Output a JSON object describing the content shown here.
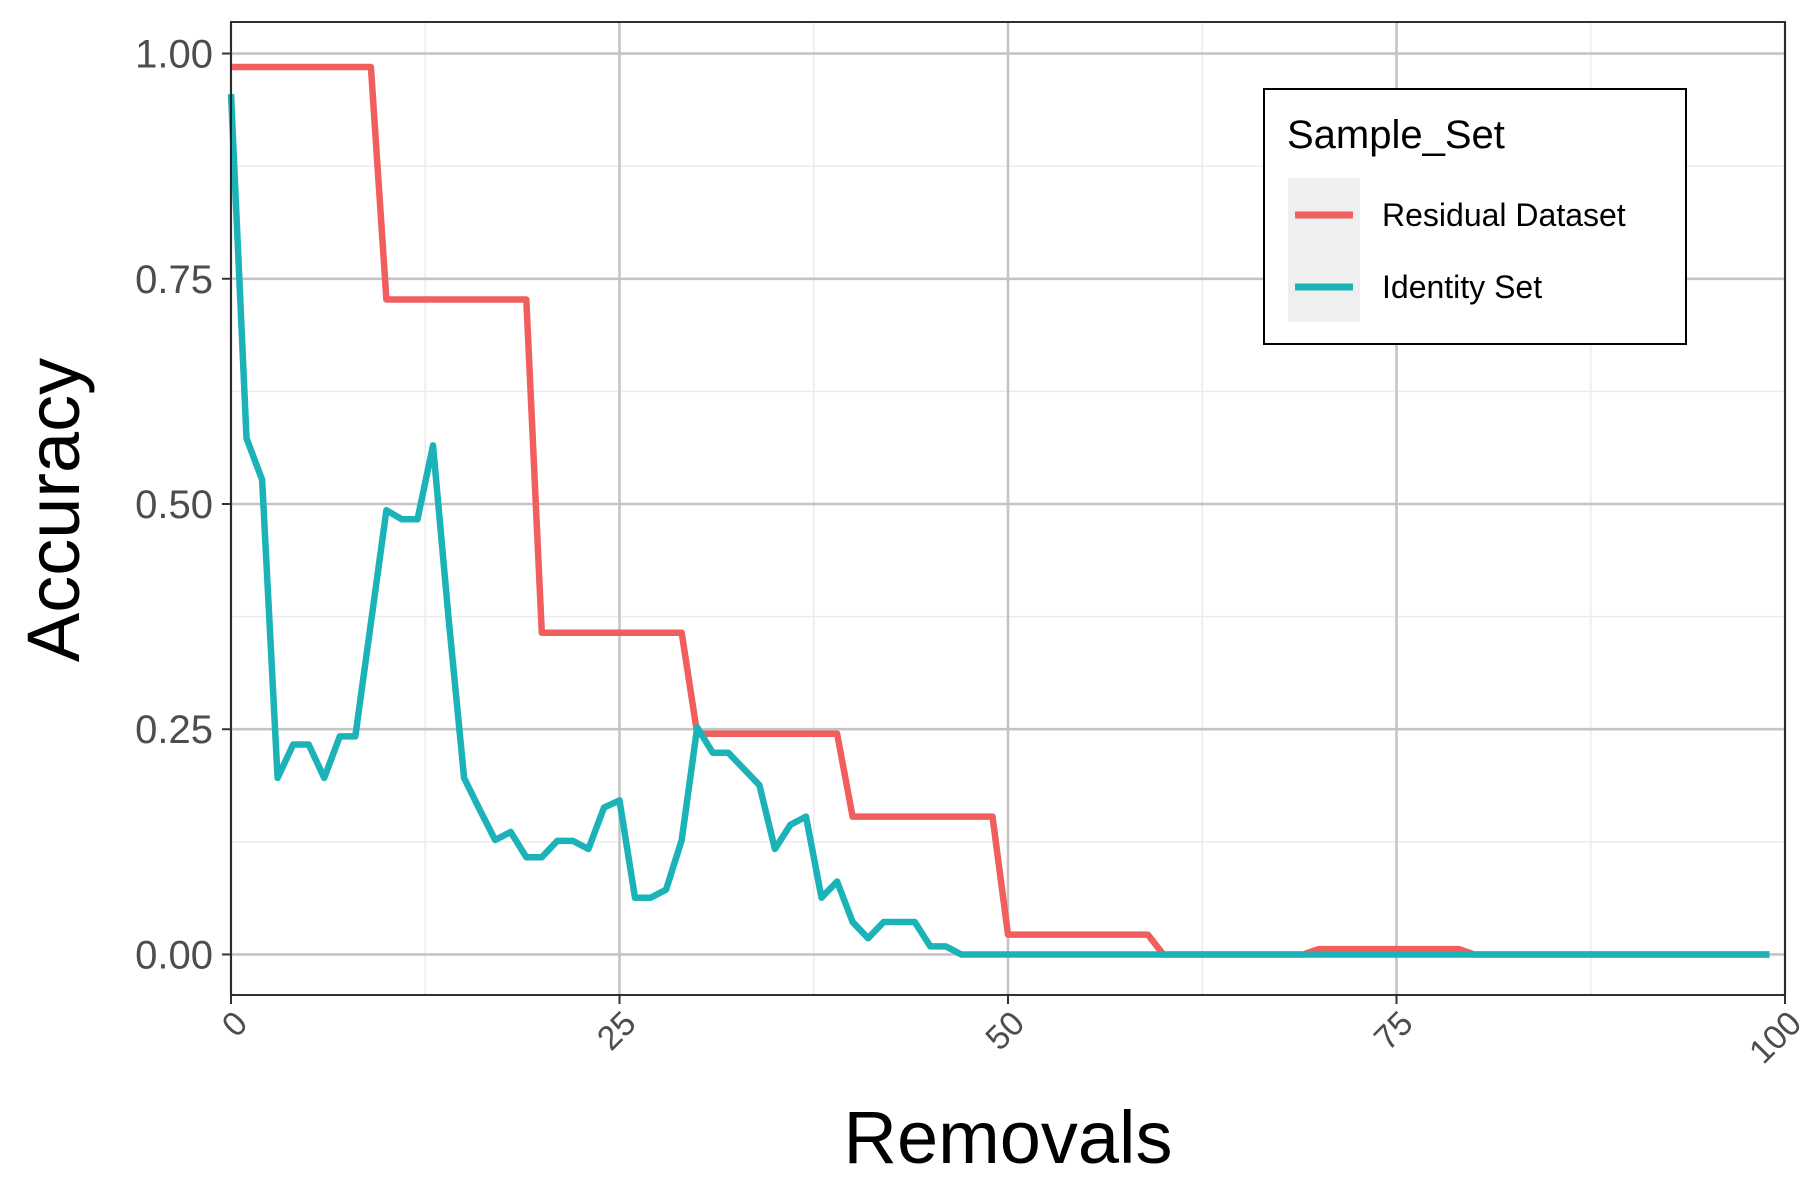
{
  "chart_data": {
    "type": "line",
    "title": "",
    "xlabel": "Removals",
    "ylabel": "Accuracy",
    "xlim": [
      0,
      100
    ],
    "ylim": [
      -0.045,
      1.035
    ],
    "x_ticks": [
      0,
      25,
      50,
      75,
      100
    ],
    "x_tick_labels": [
      "0",
      "25",
      "50",
      "75",
      "100"
    ],
    "y_ticks": [
      0,
      0.25,
      0.5,
      0.75,
      1.0
    ],
    "y_tick_labels": [
      "0.00",
      "0.25",
      "0.50",
      "0.75",
      "1.00"
    ],
    "grid": true,
    "legend": {
      "title": "Sample_Set",
      "position": "top-right"
    },
    "series": [
      {
        "name": "Residual Dataset",
        "color": "#F05E5E",
        "points": [
          [
            0,
            0.985
          ],
          [
            9,
            0.985
          ],
          [
            10,
            0.727
          ],
          [
            19,
            0.727
          ],
          [
            20,
            0.357
          ],
          [
            29,
            0.357
          ],
          [
            30,
            0.245
          ],
          [
            39,
            0.245
          ],
          [
            40,
            0.153
          ],
          [
            49,
            0.153
          ],
          [
            50,
            0.022
          ],
          [
            59,
            0.022
          ],
          [
            60,
            0.0
          ],
          [
            69,
            0.0
          ],
          [
            70,
            0.006
          ],
          [
            79,
            0.006
          ],
          [
            80,
            0.0
          ],
          [
            99,
            0.0
          ]
        ]
      },
      {
        "name": "Identity Set",
        "color": "#1CB3B8",
        "points": [
          [
            0,
            0.955
          ],
          [
            1,
            0.573
          ],
          [
            2,
            0.527
          ],
          [
            3,
            0.196
          ],
          [
            4,
            0.233
          ],
          [
            5,
            0.233
          ],
          [
            6,
            0.196
          ],
          [
            7,
            0.242
          ],
          [
            8,
            0.242
          ],
          [
            10,
            0.493
          ],
          [
            11,
            0.483
          ],
          [
            12,
            0.483
          ],
          [
            13,
            0.565
          ],
          [
            14,
            0.373
          ],
          [
            15,
            0.196
          ],
          [
            16,
            0.161
          ],
          [
            17,
            0.127
          ],
          [
            18,
            0.136
          ],
          [
            19,
            0.108
          ],
          [
            20,
            0.108
          ],
          [
            21,
            0.126
          ],
          [
            22,
            0.126
          ],
          [
            23,
            0.117
          ],
          [
            24,
            0.163
          ],
          [
            25,
            0.171
          ],
          [
            26,
            0.063
          ],
          [
            27,
            0.063
          ],
          [
            28,
            0.072
          ],
          [
            29,
            0.127
          ],
          [
            30,
            0.252
          ],
          [
            31,
            0.224
          ],
          [
            32,
            0.224
          ],
          [
            33,
            0.206
          ],
          [
            34,
            0.188
          ],
          [
            35,
            0.117
          ],
          [
            36,
            0.144
          ],
          [
            37,
            0.153
          ],
          [
            38,
            0.063
          ],
          [
            39,
            0.081
          ],
          [
            40,
            0.036
          ],
          [
            41,
            0.018
          ],
          [
            42,
            0.036
          ],
          [
            43,
            0.036
          ],
          [
            44,
            0.036
          ],
          [
            45,
            0.009
          ],
          [
            46,
            0.009
          ],
          [
            47,
            0.0
          ],
          [
            99,
            0.0
          ]
        ]
      }
    ]
  }
}
